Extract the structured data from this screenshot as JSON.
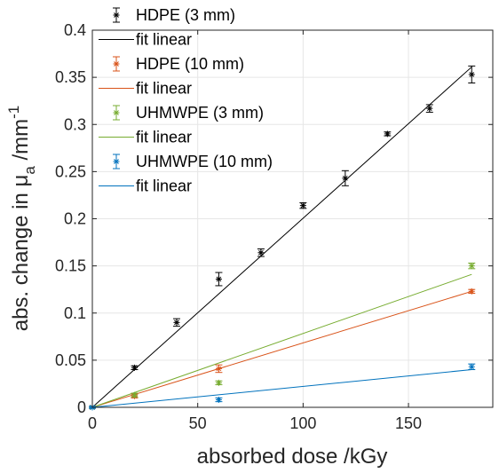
{
  "chart_data": {
    "type": "scatter",
    "title": "",
    "xlabel": "absorbed dose /kGy",
    "ylabel": {
      "prefix": "abs. change in μ",
      "subscript": "a",
      "unit": " /mm",
      "superscript": "-1"
    },
    "xlim": [
      0,
      190
    ],
    "ylim": [
      0,
      0.4
    ],
    "xticks": [
      0,
      50,
      100,
      150
    ],
    "yticks": [
      0,
      0.05,
      0.1,
      0.15,
      0.2,
      0.25,
      0.3,
      0.35,
      0.4
    ],
    "xtick_labels": [
      "0",
      "50",
      "100",
      "150"
    ],
    "ytick_labels": [
      "0",
      "0.05",
      "0.1",
      "0.15",
      "0.2",
      "0.25",
      "0.3",
      "0.35",
      "0.4"
    ],
    "grid": true,
    "legend_position": "top-left",
    "series": [
      {
        "name": "HDPE (3 mm)",
        "fit_name": "fit linear",
        "color": "#000000",
        "marker": "asterisk",
        "points": [
          {
            "x": 0,
            "y": 0,
            "err": 0.001
          },
          {
            "x": 20,
            "y": 0.042,
            "err": 0.002
          },
          {
            "x": 40,
            "y": 0.09,
            "err": 0.004
          },
          {
            "x": 60,
            "y": 0.136,
            "err": 0.007
          },
          {
            "x": 80,
            "y": 0.164,
            "err": 0.004
          },
          {
            "x": 100,
            "y": 0.214,
            "err": 0.003
          },
          {
            "x": 120,
            "y": 0.243,
            "err": 0.008
          },
          {
            "x": 140,
            "y": 0.29,
            "err": 0.002
          },
          {
            "x": 160,
            "y": 0.317,
            "err": 0.004
          },
          {
            "x": 180,
            "y": 0.353,
            "err": 0.009
          }
        ],
        "fit": {
          "x": [
            0,
            180
          ],
          "y": [
            0,
            0.361
          ]
        }
      },
      {
        "name": "HDPE (10 mm)",
        "fit_name": "fit linear",
        "color": "#d95319",
        "marker": "asterisk",
        "points": [
          {
            "x": 0,
            "y": 0,
            "err": 0.001
          },
          {
            "x": 20,
            "y": 0.012,
            "err": 0.002
          },
          {
            "x": 60,
            "y": 0.041,
            "err": 0.004
          },
          {
            "x": 180,
            "y": 0.123,
            "err": 0.002
          }
        ],
        "fit": {
          "x": [
            0,
            180
          ],
          "y": [
            0,
            0.123
          ]
        }
      },
      {
        "name": "UHMWPE (3 mm)",
        "fit_name": "fit linear",
        "color": "#77ac30",
        "marker": "asterisk",
        "points": [
          {
            "x": 0,
            "y": 0,
            "err": 0.001
          },
          {
            "x": 20,
            "y": 0.013,
            "err": 0.002
          },
          {
            "x": 60,
            "y": 0.026,
            "err": 0.002
          },
          {
            "x": 180,
            "y": 0.15,
            "err": 0.003
          }
        ],
        "fit": {
          "x": [
            0,
            180
          ],
          "y": [
            0,
            0.141
          ]
        }
      },
      {
        "name": "UHMWPE (10 mm)",
        "fit_name": "fit linear",
        "color": "#0072bd",
        "marker": "asterisk",
        "points": [
          {
            "x": 0,
            "y": 0,
            "err": 0.001
          },
          {
            "x": 60,
            "y": 0.008,
            "err": 0.002
          },
          {
            "x": 180,
            "y": 0.043,
            "err": 0.003
          }
        ],
        "fit": {
          "x": [
            0,
            180
          ],
          "y": [
            0,
            0.04
          ]
        }
      }
    ]
  }
}
